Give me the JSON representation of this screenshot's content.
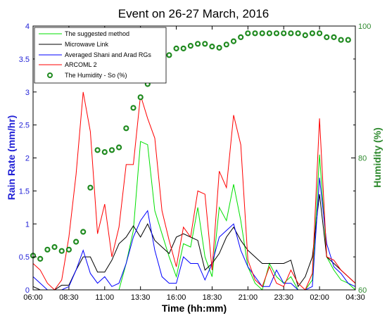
{
  "chart_data": {
    "type": "line",
    "title": "Event on 26-27 March, 2016",
    "xlabel": "Time (hh:mm)",
    "ylabel": "Rain Rate (mm/hr)",
    "ylabel_right": "Humidity (%)",
    "xlim": [
      0,
      45
    ],
    "ylim": [
      0,
      4
    ],
    "ylim_right": [
      60,
      100
    ],
    "x_ticks": [
      {
        "v": 0,
        "label": "06:00"
      },
      {
        "v": 5,
        "label": "08:30"
      },
      {
        "v": 10,
        "label": "11:00"
      },
      {
        "v": 15,
        "label": "13:30"
      },
      {
        "v": 20,
        "label": "16:00"
      },
      {
        "v": 25,
        "label": "18:30"
      },
      {
        "v": 30,
        "label": "21:00"
      },
      {
        "v": 35,
        "label": "23:30"
      },
      {
        "v": 40,
        "label": "02:00"
      },
      {
        "v": 45,
        "label": "04:30"
      }
    ],
    "y_ticks": [
      {
        "v": 0,
        "label": "0"
      },
      {
        "v": 0.5,
        "label": "0.5"
      },
      {
        "v": 1,
        "label": "1"
      },
      {
        "v": 1.5,
        "label": "1.5"
      },
      {
        "v": 2,
        "label": "2"
      },
      {
        "v": 2.5,
        "label": "2.5"
      },
      {
        "v": 3,
        "label": "3"
      },
      {
        "v": 3.5,
        "label": "3.5"
      },
      {
        "v": 4,
        "label": "4"
      }
    ],
    "y_ticks_right": [
      {
        "v": 60,
        "label": "60"
      },
      {
        "v": 80,
        "label": "80"
      },
      {
        "v": 100,
        "label": "100"
      }
    ],
    "legend_position": "top-left",
    "series": [
      {
        "name": "The suggested method",
        "color": "#00e000",
        "x": [
          0,
          1,
          2,
          3,
          4,
          5,
          6,
          7,
          8,
          9,
          10,
          11,
          12,
          13,
          14,
          15,
          16,
          17,
          18,
          19,
          20,
          21,
          22,
          23,
          24,
          25,
          26,
          27,
          28,
          29,
          30,
          31,
          32,
          33,
          34,
          35,
          36,
          37,
          38,
          39,
          40,
          41,
          42,
          43,
          44,
          45
        ],
        "y": [
          0,
          0,
          0,
          0,
          0,
          0,
          0,
          0,
          0,
          0,
          0,
          0,
          0,
          0.4,
          0.9,
          2.25,
          2.2,
          1.2,
          0.85,
          0.5,
          0.2,
          0.7,
          0.65,
          1.25,
          0.5,
          0.2,
          1.25,
          1.05,
          1.6,
          1.05,
          0.35,
          0.1,
          0,
          0.4,
          0.2,
          0.1,
          0.2,
          0,
          0,
          0.15,
          2.05,
          0.5,
          0.3,
          0.15,
          0.1,
          0
        ]
      },
      {
        "name": "Microwave Link",
        "color": "#000000",
        "x": [
          0,
          1,
          2,
          3,
          4,
          5,
          6,
          7,
          8,
          9,
          10,
          11,
          12,
          13,
          14,
          15,
          16,
          17,
          18,
          19,
          20,
          21,
          22,
          23,
          24,
          25,
          26,
          27,
          28,
          29,
          30,
          31,
          32,
          33,
          34,
          35,
          36,
          37,
          38,
          39,
          40,
          41,
          42,
          43,
          44,
          45
        ],
        "y": [
          0.05,
          0,
          0,
          0,
          0.07,
          0.07,
          0.3,
          0.5,
          0.5,
          0.27,
          0.27,
          0.45,
          0.7,
          0.8,
          0.97,
          0.8,
          1.0,
          0.75,
          0.65,
          0.55,
          0.8,
          0.85,
          0.8,
          0.75,
          0.3,
          0.4,
          0.55,
          0.8,
          0.95,
          0.75,
          0.6,
          0.5,
          0.4,
          0.4,
          0.4,
          0.4,
          0.45,
          0.05,
          0.2,
          0.5,
          1.45,
          0.5,
          0.4,
          0.3,
          0.2,
          0.1
        ]
      },
      {
        "name": "Averaged Shani and Arad RGs",
        "color": "#0000ff",
        "x": [
          0,
          1,
          2,
          3,
          4,
          5,
          6,
          7,
          8,
          9,
          10,
          11,
          12,
          13,
          14,
          15,
          16,
          17,
          18,
          19,
          20,
          21,
          22,
          23,
          24,
          25,
          26,
          27,
          28,
          29,
          30,
          31,
          32,
          33,
          34,
          35,
          36,
          37,
          38,
          39,
          40,
          41,
          42,
          43,
          44,
          45
        ],
        "y": [
          0.2,
          0.1,
          0,
          0,
          0,
          0.05,
          0.3,
          0.6,
          0.25,
          0.1,
          0.2,
          0.05,
          0.1,
          0.4,
          0.8,
          1.05,
          1.2,
          0.6,
          0.2,
          0.1,
          0.1,
          0.5,
          0.4,
          0.4,
          0.15,
          0.4,
          0.8,
          0.9,
          1.0,
          0.6,
          0.35,
          0.2,
          0.05,
          0.05,
          0.3,
          0.1,
          0.1,
          0,
          0,
          0.05,
          1.7,
          0.7,
          0.35,
          0.25,
          0.1,
          0.05
        ]
      },
      {
        "name": "ARCOML 2",
        "color": "#ff0000",
        "x": [
          0,
          1,
          2,
          3,
          4,
          5,
          6,
          7,
          8,
          9,
          10,
          11,
          12,
          13,
          14,
          15,
          16,
          17,
          18,
          19,
          20,
          21,
          22,
          23,
          24,
          25,
          26,
          27,
          28,
          29,
          30,
          31,
          32,
          33,
          34,
          35,
          36,
          37,
          38,
          39,
          40,
          41,
          42,
          43,
          44,
          45
        ],
        "y": [
          0.4,
          0.3,
          0.1,
          0,
          0.15,
          0.8,
          1.75,
          3.0,
          2.4,
          0.85,
          1.3,
          0.5,
          0.95,
          1.9,
          1.9,
          2.95,
          2.6,
          2.3,
          1.2,
          0.75,
          0.35,
          0.95,
          0.8,
          1.5,
          1.45,
          0.3,
          1.8,
          1.55,
          2.65,
          2.2,
          0.45,
          0.15,
          0.05,
          0.35,
          0.1,
          0.05,
          0.3,
          0.1,
          0,
          0.25,
          2.6,
          0.5,
          0.45,
          0.3,
          0.2,
          0.1
        ]
      }
    ],
    "humidity": {
      "name": "The Humidity - So (%)",
      "color": "#1f8a1f",
      "points": [
        [
          0,
          65.2
        ],
        [
          1,
          64.7
        ],
        [
          2,
          66.1
        ],
        [
          3,
          66.5
        ],
        [
          4,
          65.9
        ],
        [
          5,
          66.1
        ],
        [
          6,
          67.3
        ],
        [
          7,
          68.8
        ],
        [
          8,
          75.5
        ],
        [
          9,
          81.2
        ],
        [
          10,
          80.9
        ],
        [
          11,
          81.2
        ],
        [
          12,
          81.6
        ],
        [
          13,
          84.5
        ],
        [
          14,
          87.6
        ],
        [
          15,
          89.2
        ],
        [
          16,
          91.2
        ],
        [
          17,
          92.7
        ],
        [
          18,
          94.3
        ],
        [
          19,
          95.6
        ],
        [
          20,
          96.6
        ],
        [
          21,
          96.6
        ],
        [
          22,
          97.0
        ],
        [
          23,
          97.3
        ],
        [
          24,
          97.3
        ],
        [
          25,
          96.9
        ],
        [
          26,
          96.7
        ],
        [
          27,
          97.2
        ],
        [
          28,
          97.7
        ],
        [
          29,
          98.3
        ],
        [
          30,
          98.9
        ],
        [
          31,
          98.9
        ],
        [
          32,
          98.9
        ],
        [
          33,
          98.9
        ],
        [
          34,
          98.9
        ],
        [
          35,
          98.9
        ],
        [
          36,
          98.9
        ],
        [
          37,
          98.9
        ],
        [
          38,
          98.6
        ],
        [
          39,
          98.9
        ],
        [
          40,
          98.9
        ],
        [
          41,
          98.3
        ],
        [
          42,
          98.3
        ],
        [
          43,
          97.9
        ],
        [
          44,
          97.9
        ]
      ]
    }
  }
}
